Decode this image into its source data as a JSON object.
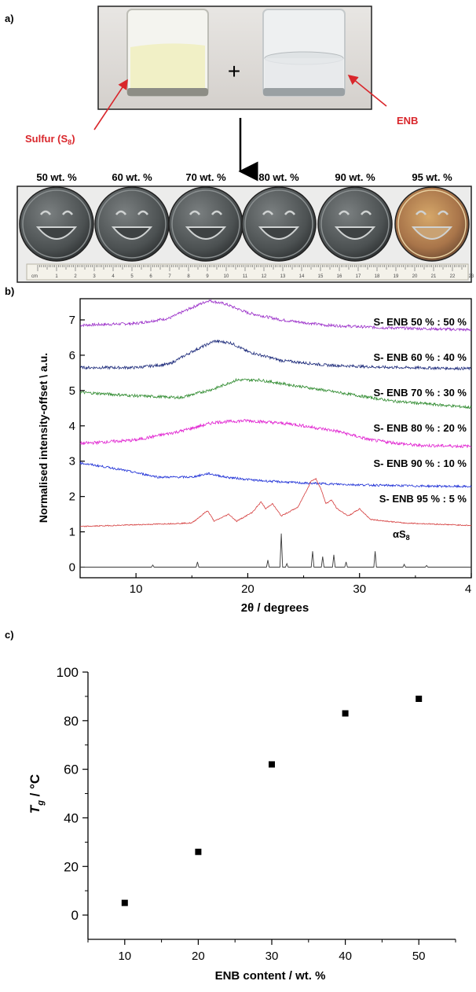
{
  "panel_a": {
    "label": "a)",
    "plus": "+",
    "sulfur_label": "Sulfur (S",
    "sulfur_sub": "8",
    "sulfur_close": ")",
    "enb_label": "ENB",
    "arrow_color": "#d9262b",
    "sulfur_color": "#f1f0c6",
    "disc_labels": [
      "50 wt. %",
      "60 wt. %",
      "70 wt. %",
      "80 wt. %",
      "90 wt. %",
      "95 wt. %"
    ],
    "ruler_numbers": [
      "cm",
      "1",
      "2",
      "3",
      "4",
      "5",
      "6",
      "7",
      "8",
      "9",
      "10",
      "11",
      "12",
      "13",
      "14",
      "15",
      "16",
      "17",
      "18",
      "19",
      "20",
      "21",
      "22",
      "23"
    ]
  },
  "chart_data": [
    {
      "panel": "b)",
      "type": "line",
      "xlabel": "2θ / degrees",
      "ylabel": "Normalised intensity-offset \\ a.u.",
      "xlim": [
        5,
        40
      ],
      "ylim": [
        -0.3,
        7.6
      ],
      "x_ticks": [
        "10",
        "20",
        "30",
        "4"
      ],
      "y_ticks": [
        "0",
        "1",
        "2",
        "3",
        "4",
        "5",
        "6",
        "7"
      ],
      "series": [
        {
          "name": "S- ENB 50 % : 50 %",
          "color": "#9b30c9",
          "x": [
            5,
            10,
            13,
            15,
            16.5,
            18,
            20,
            23,
            27,
            32,
            40
          ],
          "y": [
            6.85,
            6.9,
            7.05,
            7.35,
            7.55,
            7.45,
            7.2,
            7.0,
            6.85,
            6.78,
            6.72
          ]
        },
        {
          "name": "S- ENB 60 % : 40 %",
          "color": "#1c2a7a",
          "x": [
            5,
            10,
            13,
            15,
            17,
            18.5,
            20,
            23,
            27,
            32,
            40
          ],
          "y": [
            5.65,
            5.65,
            5.75,
            6.1,
            6.4,
            6.35,
            6.1,
            5.85,
            5.72,
            5.66,
            5.62
          ]
        },
        {
          "name": "S- ENB 70 % : 30 %",
          "color": "#2e8a2e",
          "x": [
            5,
            10,
            14,
            17,
            19,
            21,
            24,
            28,
            33,
            40
          ],
          "y": [
            4.95,
            4.85,
            4.8,
            5.05,
            5.3,
            5.3,
            5.15,
            4.95,
            4.7,
            4.52
          ]
        },
        {
          "name": "S- ENB 80 % : 20 %",
          "color": "#e020d0",
          "x": [
            5,
            10,
            14,
            17,
            20,
            24,
            28,
            31,
            35,
            40
          ],
          "y": [
            3.5,
            3.6,
            3.85,
            4.1,
            4.15,
            4.05,
            3.85,
            3.6,
            3.45,
            3.42
          ]
        },
        {
          "name": "S- ENB 90 % : 10 %",
          "color": "#1d2fd6",
          "x": [
            5,
            8,
            12,
            15,
            16.5,
            18,
            21,
            25,
            30,
            35,
            40
          ],
          "y": [
            2.95,
            2.8,
            2.55,
            2.55,
            2.65,
            2.55,
            2.45,
            2.38,
            2.33,
            2.3,
            2.28
          ]
        },
        {
          "name": "S- ENB 95 % : 5 %",
          "color": "#d43a3a",
          "x": [
            5,
            10,
            15,
            16.4,
            17,
            18.3,
            19,
            20.4,
            21.2,
            21.6,
            22.2,
            23,
            24.5,
            25.7,
            26.1,
            26.5,
            27,
            27.5,
            28,
            29,
            30,
            31,
            34,
            40
          ],
          "y": [
            1.15,
            1.2,
            1.25,
            1.6,
            1.3,
            1.5,
            1.3,
            1.55,
            1.85,
            1.65,
            1.8,
            1.45,
            1.7,
            2.45,
            2.5,
            2.25,
            1.8,
            1.9,
            1.65,
            1.45,
            1.65,
            1.35,
            1.25,
            1.18
          ]
        },
        {
          "name": "αS8",
          "color": "#3a3a3a",
          "x": [
            5,
            11.5,
            15.5,
            21.8,
            23.0,
            23.5,
            25.8,
            26.7,
            27.7,
            28.8,
            31.4,
            34.0,
            36.0,
            40
          ],
          "y": [
            0.0,
            0.06,
            0.15,
            0.2,
            0.95,
            0.1,
            0.45,
            0.3,
            0.35,
            0.15,
            0.45,
            0.08,
            0.05,
            0.0
          ]
        }
      ],
      "label_texts": [
        "S- ENB 50 % : 50 %",
        "S- ENB 60 % : 40 %",
        "S- ENB 70 % : 30 %",
        "S- ENB 80 % : 20 %",
        "S- ENB 90 % : 10 %",
        "S- ENB 95 % : 5 %",
        "αS"
      ],
      "alpha_sub": "8",
      "grid": false
    },
    {
      "panel": "c)",
      "type": "scatter",
      "xlabel": "ENB content / wt. %",
      "ylabel": "T",
      "ylabel_sub": "g",
      "ylabel_unit": " / °C",
      "xlim": [
        5,
        55
      ],
      "ylim": [
        -10,
        100
      ],
      "x_ticks": [
        "10",
        "20",
        "30",
        "40",
        "50"
      ],
      "y_ticks": [
        "0",
        "20",
        "40",
        "60",
        "80",
        "100"
      ],
      "x": [
        10,
        20,
        30,
        40,
        50
      ],
      "y": [
        5,
        26,
        62,
        83,
        89
      ],
      "marker_color": "#000000",
      "grid": false
    }
  ]
}
